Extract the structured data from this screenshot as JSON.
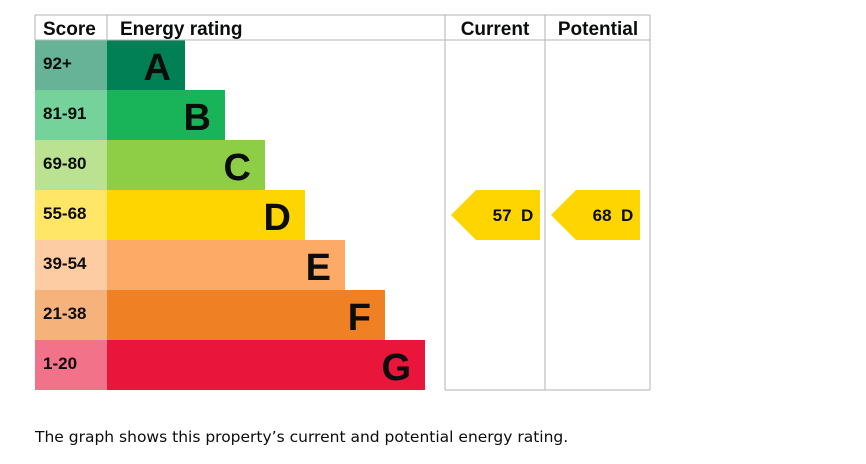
{
  "chart_data": {
    "type": "table",
    "headers": {
      "score": "Score",
      "rating": "Energy rating",
      "current": "Current",
      "potential": "Potential"
    },
    "bands": [
      {
        "score": "92+",
        "letter": "A",
        "color": "#008054",
        "score_bg": "#66b398"
      },
      {
        "score": "81-91",
        "letter": "B",
        "color": "#19b459",
        "score_bg": "#75d29b"
      },
      {
        "score": "69-80",
        "letter": "C",
        "color": "#8dce46",
        "score_bg": "#bbe290"
      },
      {
        "score": "55-68",
        "letter": "D",
        "color": "#ffd500",
        "score_bg": "#ffe666"
      },
      {
        "score": "39-54",
        "letter": "E",
        "color": "#fcaa65",
        "score_bg": "#fdcca3"
      },
      {
        "score": "21-38",
        "letter": "F",
        "color": "#ef8023",
        "score_bg": "#f5b37b"
      },
      {
        "score": "1-20",
        "letter": "G",
        "color": "#e9153b",
        "score_bg": "#f27389"
      }
    ],
    "current": {
      "value": 57,
      "band": "D",
      "label": "57  D"
    },
    "potential": {
      "value": 68,
      "band": "D",
      "label": "68  D"
    }
  },
  "caption": "The graph shows this property’s current and potential energy rating."
}
